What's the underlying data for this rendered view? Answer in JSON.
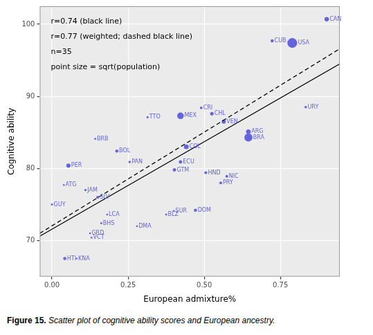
{
  "chart_data": {
    "type": "scatter",
    "x_label": "European admixture%",
    "y_label": "Cognitive ability",
    "annotations": [
      "r=0.74 (black line)",
      "r=0.77 (weighted; dashed black line)",
      "n=35",
      "point size = sqrt(population)"
    ],
    "points": {
      "color": "#6464dc",
      "labels": [
        "CAN",
        "CUB",
        "USA",
        "URY",
        "CRI",
        "CHL",
        "MEX",
        "TTO",
        "VEN",
        "ARG",
        "BRA",
        "COL",
        "BRB",
        "BOL",
        "PAN",
        "ECU",
        "PER",
        "GTM",
        "HND",
        "NIC",
        "PRY",
        "ATG",
        "JAM",
        "SLV",
        "GUY",
        "LCA",
        "SUR",
        "DOM",
        "BLZ",
        "BHS",
        "DMA",
        "GRD",
        "VCT",
        "HTI",
        "KNA"
      ],
      "x": [
        0.902,
        0.723,
        0.789,
        0.833,
        0.49,
        0.525,
        0.422,
        0.314,
        0.564,
        0.645,
        0.645,
        0.441,
        0.142,
        0.213,
        0.255,
        0.422,
        0.054,
        0.402,
        0.505,
        0.574,
        0.554,
        0.039,
        0.11,
        0.15,
        0.0,
        0.181,
        0.4,
        0.471,
        0.375,
        0.162,
        0.279,
        0.125,
        0.13,
        0.042,
        0.081
      ],
      "y": [
        100.7,
        97.7,
        97.4,
        88.5,
        88.4,
        87.6,
        87.3,
        87.1,
        86.5,
        85.1,
        84.3,
        83.0,
        84.1,
        82.4,
        80.9,
        80.9,
        80.4,
        79.8,
        79.4,
        78.9,
        78.0,
        77.7,
        77.0,
        76.0,
        75.0,
        73.6,
        74.1,
        74.2,
        73.6,
        72.4,
        72.0,
        71.0,
        70.4,
        67.5,
        67.5
      ],
      "sizes": [
        5.9,
        3.3,
        17.7,
        1.8,
        2.2,
        4.1,
        10.9,
        1.1,
        5.4,
        6.4,
        14.1,
        6.9,
        0.5,
        3.2,
        1.9,
        3.9,
        5.5,
        3.9,
        2.8,
        2.4,
        2.6,
        0.3,
        1.6,
        2.5,
        0.9,
        0.4,
        0.7,
        3.2,
        0.6,
        0.6,
        0.3,
        0.3,
        0.3,
        3.2,
        0.2
      ]
    },
    "lines": [
      {
        "x": [
          -0.04,
          0.945
        ],
        "y": [
          70.6,
          94.5
        ],
        "color": "#000000",
        "line_style": "solid"
      },
      {
        "x": [
          -0.04,
          0.945
        ],
        "y": [
          71.0,
          96.6
        ],
        "color": "#000000",
        "line_style": "dashed"
      }
    ],
    "xlim": [
      -0.04,
      0.945
    ],
    "ylim": [
      65,
      102.5
    ],
    "xticks": [
      {
        "value": 0,
        "label": "0.00"
      },
      0.25,
      {
        "value": 0.5,
        "label": "0.50"
      },
      0.75
    ],
    "yticks": [
      70,
      80,
      90,
      100
    ],
    "grid": true
  },
  "caption": {
    "label": "Figure 15.",
    "text": "Scatter plot of cognitive ability scores and European ancestry."
  }
}
